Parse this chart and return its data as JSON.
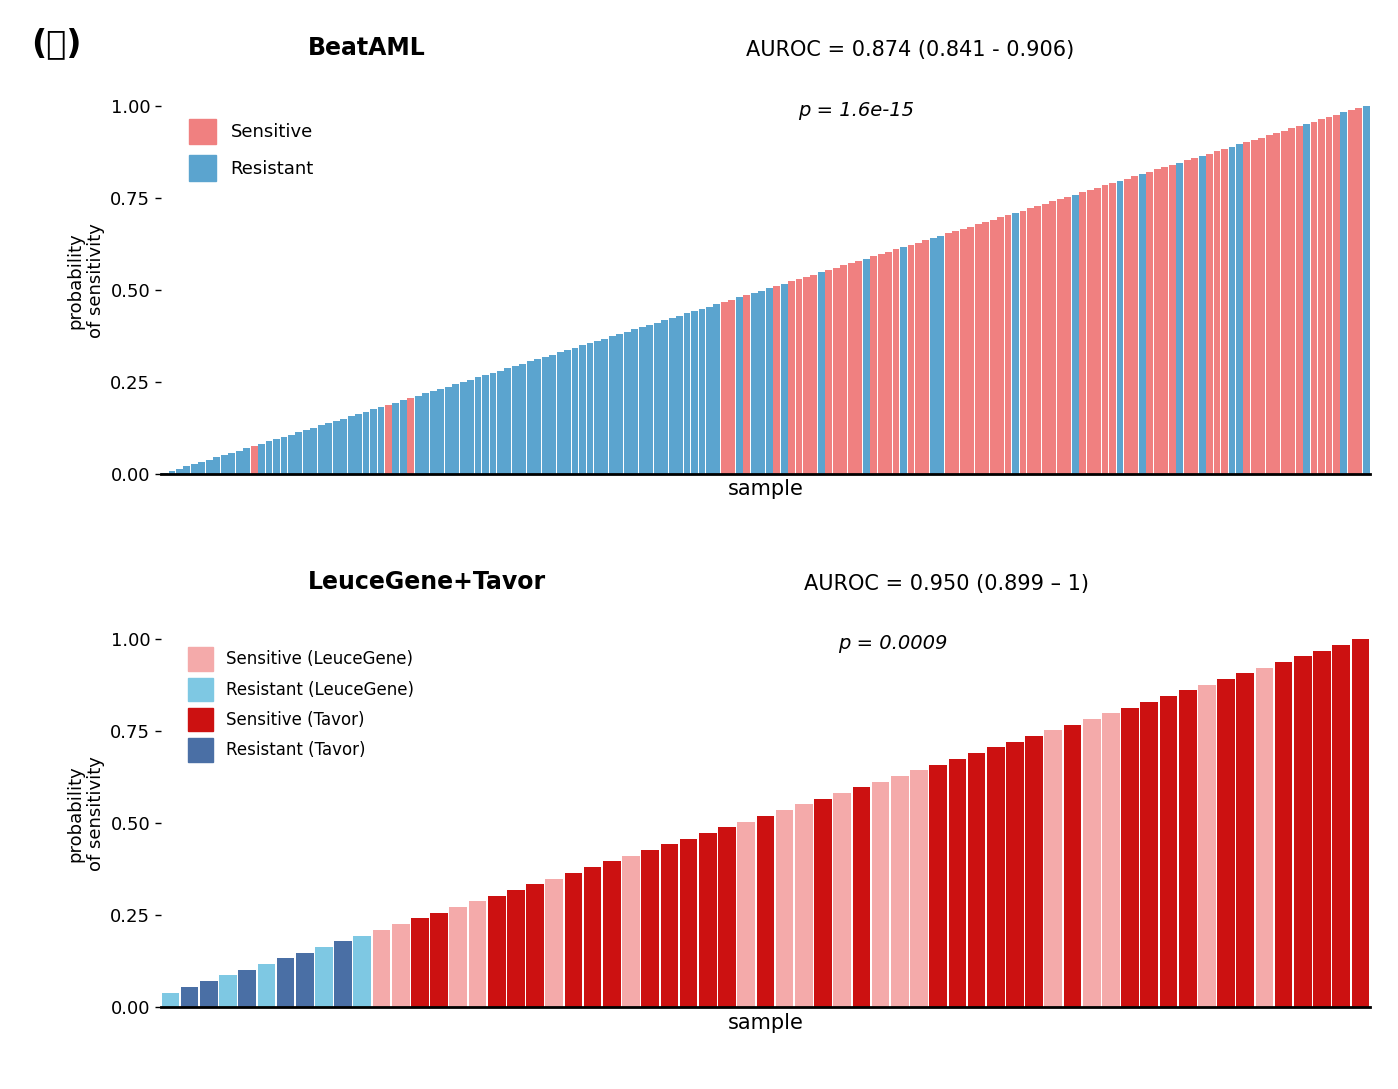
{
  "panel_label": "(나)",
  "chart1": {
    "title": "BeatAML",
    "auroc_text": "AUROC = 0.874 (0.841 - 0.906)",
    "pval_text": "p = 1.6e-15",
    "ylabel": "probability\nof sensitivity",
    "xlabel": "sample",
    "ylim": [
      0,
      1.05
    ],
    "yticks": [
      0.0,
      0.25,
      0.5,
      0.75,
      1.0
    ],
    "sensitive_color": "#F08080",
    "resistant_color": "#5BA4CF",
    "legend_labels": [
      "Sensitive",
      "Resistant"
    ],
    "n_total": 162
  },
  "chart2": {
    "title": "LeuceGene+Tavor",
    "auroc_text": "AUROC = 0.950 (0.899 – 1)",
    "pval_text": "p = 0.0009",
    "ylabel": "probability\nof sensitivity",
    "xlabel": "sample",
    "ylim": [
      0,
      1.05
    ],
    "yticks": [
      0.0,
      0.25,
      0.5,
      0.75,
      1.0
    ],
    "sensitive_lg_color": "#F4AAAA",
    "resistant_lg_color": "#7EC8E3",
    "sensitive_tv_color": "#CC1111",
    "resistant_tv_color": "#4A6FA5",
    "legend_labels": [
      "Sensitive (LeuceGene)",
      "Resistant (LeuceGene)",
      "Sensitive (Tavor)",
      "Resistant (Tavor)"
    ],
    "n_resistant_lg": 5,
    "n_resistant_tv": 6,
    "n_sensitive_lg": 18,
    "n_sensitive_tv": 34
  }
}
